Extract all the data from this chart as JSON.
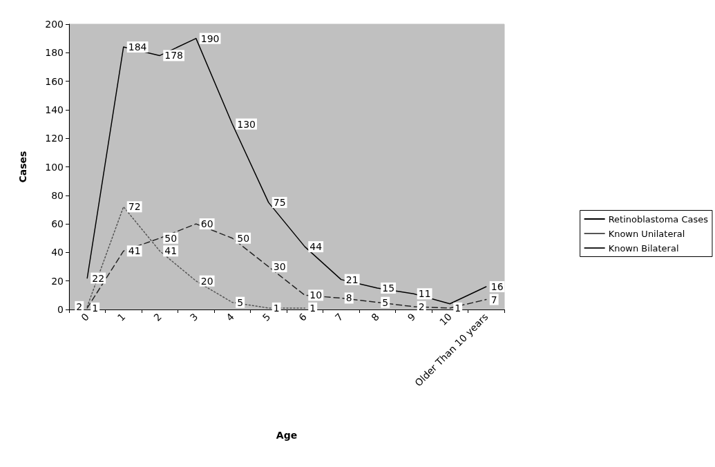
{
  "chart_data": {
    "type": "line",
    "xlabel": "Age",
    "ylabel": "Cases",
    "categories": [
      "0",
      "1",
      "2",
      "3",
      "4",
      "5",
      "6",
      "7",
      "8",
      "9",
      "10",
      "Older Than 10 years"
    ],
    "series": [
      {
        "name": "Retinoblastoma Cases",
        "color": "#000000",
        "line_style": "solid",
        "values": [
          22,
          184,
          178,
          190,
          130,
          75,
          44,
          21,
          15,
          11,
          4,
          16
        ],
        "value_labels": [
          "22",
          "184",
          "178",
          "190",
          "130",
          "75",
          "44",
          "21",
          "15",
          "11",
          null,
          "16"
        ]
      },
      {
        "name": "Known Unilateral",
        "color": "#555555",
        "line_style": "dotted",
        "values": [
          2,
          72,
          41,
          20,
          5,
          1,
          1,
          null,
          null,
          null,
          null,
          null
        ],
        "value_labels": [
          "2",
          "72",
          "41",
          "20",
          "5",
          "1",
          "1",
          null,
          null,
          null,
          null,
          null
        ]
      },
      {
        "name": "Known Bilateral",
        "color": "#222222",
        "line_style": "dashed",
        "values": [
          1,
          41,
          50,
          60,
          50,
          30,
          10,
          8,
          5,
          2,
          1,
          7
        ],
        "value_labels": [
          "1",
          "41",
          "50",
          "60",
          "50",
          "30",
          "10",
          "8",
          "5",
          "2",
          "1",
          "7"
        ]
      }
    ],
    "ylim": [
      0,
      200
    ],
    "yticks": [
      0,
      20,
      40,
      60,
      80,
      100,
      120,
      140,
      160,
      180,
      200
    ],
    "grid": false,
    "legend": "right",
    "marker": "none"
  }
}
